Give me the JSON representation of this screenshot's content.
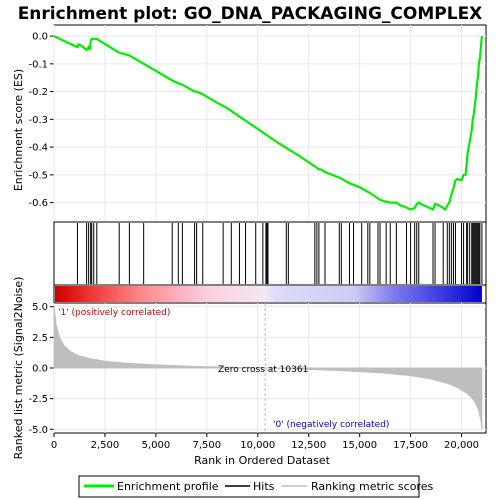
{
  "title": "Enrichment plot: GO_DNA_PACKAGING_COMPLEX",
  "colors": {
    "enrichment_line": "#00ee00",
    "hit_line": "#000000",
    "metric_fill": "#bebebe",
    "positive_label": "#cc0000",
    "negative_label": "#0000cc",
    "grid": "#e8e8e8",
    "zero_cross_line": "#bbbbbb"
  },
  "chart_data": [
    {
      "type": "line",
      "name": "enrichment-profile",
      "ylabel": "Enrichment score (ES)",
      "xlim": [
        0,
        21200
      ],
      "ylim": [
        -0.67,
        0.04
      ],
      "y_ticks": [
        0.0,
        -0.1,
        -0.2,
        -0.3,
        -0.4,
        -0.5,
        -0.6
      ],
      "y_tick_labels": [
        "0.0",
        "-0.1",
        "-0.2",
        "-0.3",
        "-0.4",
        "-0.5",
        "-0.6"
      ],
      "grid": true,
      "series": [
        {
          "name": "Enrichment profile",
          "x": [
            0,
            1150,
            1200,
            1350,
            1600,
            1700,
            1750,
            1800,
            1850,
            1950,
            2100,
            2300,
            3200,
            3700,
            4400,
            5800,
            6100,
            6300,
            6900,
            7000,
            7300,
            8000,
            8500,
            9000,
            9500,
            10000,
            10300,
            10400,
            10500,
            11000,
            12000,
            12900,
            13000,
            13100,
            13300,
            14000,
            14500,
            15000,
            15500,
            16000,
            16200,
            16500,
            16800,
            17000,
            17200,
            17500,
            17700,
            17800,
            17900,
            18000,
            18600,
            18700,
            18900,
            19000,
            19200,
            19300,
            19400,
            19500,
            19600,
            19700,
            19800,
            20000,
            20100,
            20200,
            20300,
            20400,
            20500,
            20550,
            20600,
            20650,
            20700,
            20750,
            20800,
            20850,
            20900,
            20950,
            21000
          ],
          "y": [
            0.0,
            -0.04,
            -0.03,
            -0.035,
            -0.05,
            -0.04,
            -0.05,
            -0.02,
            -0.01,
            -0.01,
            -0.01,
            -0.02,
            -0.06,
            -0.07,
            -0.1,
            -0.16,
            -0.17,
            -0.175,
            -0.2,
            -0.2,
            -0.21,
            -0.24,
            -0.26,
            -0.285,
            -0.31,
            -0.335,
            -0.35,
            -0.355,
            -0.36,
            -0.385,
            -0.43,
            -0.475,
            -0.48,
            -0.48,
            -0.49,
            -0.51,
            -0.53,
            -0.545,
            -0.565,
            -0.59,
            -0.595,
            -0.6,
            -0.6,
            -0.61,
            -0.615,
            -0.625,
            -0.62,
            -0.605,
            -0.6,
            -0.605,
            -0.625,
            -0.605,
            -0.61,
            -0.615,
            -0.625,
            -0.61,
            -0.6,
            -0.57,
            -0.55,
            -0.52,
            -0.515,
            -0.52,
            -0.5,
            -0.5,
            -0.42,
            -0.38,
            -0.34,
            -0.3,
            -0.28,
            -0.25,
            -0.22,
            -0.18,
            -0.15,
            -0.1,
            -0.08,
            -0.04,
            0.0
          ]
        }
      ]
    },
    {
      "type": "scatter",
      "name": "hits",
      "xlim": [
        0,
        21200
      ],
      "series": [
        {
          "name": "Hits",
          "x": [
            1150,
            1600,
            1700,
            1800,
            1850,
            1950,
            2100,
            3200,
            3700,
            4400,
            5800,
            6100,
            6300,
            6900,
            7000,
            7300,
            8300,
            8700,
            9100,
            9400,
            9900,
            10250,
            10400,
            10450,
            10500,
            11400,
            11500,
            12800,
            12900,
            13000,
            13300,
            14000,
            14100,
            14500,
            14700,
            15100,
            15400,
            15500,
            15900,
            16000,
            16300,
            16500,
            16800,
            17300,
            17500,
            17700,
            17800,
            17900,
            18600,
            18700,
            19100,
            19300,
            19400,
            19500,
            19600,
            19700,
            20000,
            20100,
            20250,
            20300,
            20400,
            20500,
            20550,
            20600,
            20650,
            20700,
            20750,
            20800,
            20850,
            20900,
            21000
          ]
        }
      ]
    },
    {
      "type": "heatmap",
      "name": "rank-colorbar",
      "xlim": [
        0,
        21200
      ],
      "gradient": [
        "#cc0000",
        "#ffffff",
        "#0000cc"
      ],
      "zero_cross": 10361
    },
    {
      "type": "area",
      "name": "ranked-list-metric",
      "xlabel": "Rank in Ordered Dataset",
      "ylabel": "Ranked list metric (Signal2Noise)",
      "xlim": [
        0,
        21200
      ],
      "ylim": [
        -5.3,
        5.3
      ],
      "x_ticks": [
        0,
        2500,
        5000,
        7500,
        10000,
        12500,
        15000,
        17500,
        20000
      ],
      "x_tick_labels": [
        "0",
        "2,500",
        "5,000",
        "7,500",
        "10,000",
        "12,500",
        "15,000",
        "17,500",
        "20,000"
      ],
      "y_ticks": [
        5.0,
        2.5,
        0.0,
        -2.5,
        -5.0
      ],
      "y_tick_labels": [
        "5.0",
        "2.5",
        "0.0",
        "-2.5",
        "-5.0"
      ],
      "series": [
        {
          "name": "Ranking metric scores",
          "x": [
            0,
            50,
            100,
            200,
            300,
            500,
            800,
            1200,
            1800,
            2500,
            3500,
            5000,
            7000,
            9000,
            10361,
            12000,
            14000,
            16000,
            17500,
            18500,
            19300,
            19800,
            20200,
            20500,
            20700,
            20850,
            20950,
            21000
          ],
          "y": [
            5.1,
            4.3,
            3.6,
            2.9,
            2.4,
            1.8,
            1.35,
            1.0,
            0.75,
            0.55,
            0.4,
            0.25,
            0.12,
            0.04,
            0.0,
            -0.08,
            -0.2,
            -0.38,
            -0.62,
            -0.9,
            -1.25,
            -1.6,
            -2.0,
            -2.4,
            -2.9,
            -3.5,
            -4.3,
            -5.0
          ]
        }
      ],
      "annotations": {
        "zero_cross": "Zero cross at 10361",
        "positive": "'1' (positively correlated)",
        "negative": "'0' (negatively correlated)"
      }
    }
  ],
  "legend": {
    "items": [
      {
        "label": "Enrichment profile",
        "color": "#00ee00"
      },
      {
        "label": "Hits",
        "color": "#000000"
      },
      {
        "label": "Ranking metric scores",
        "color": "#bebebe"
      }
    ]
  }
}
